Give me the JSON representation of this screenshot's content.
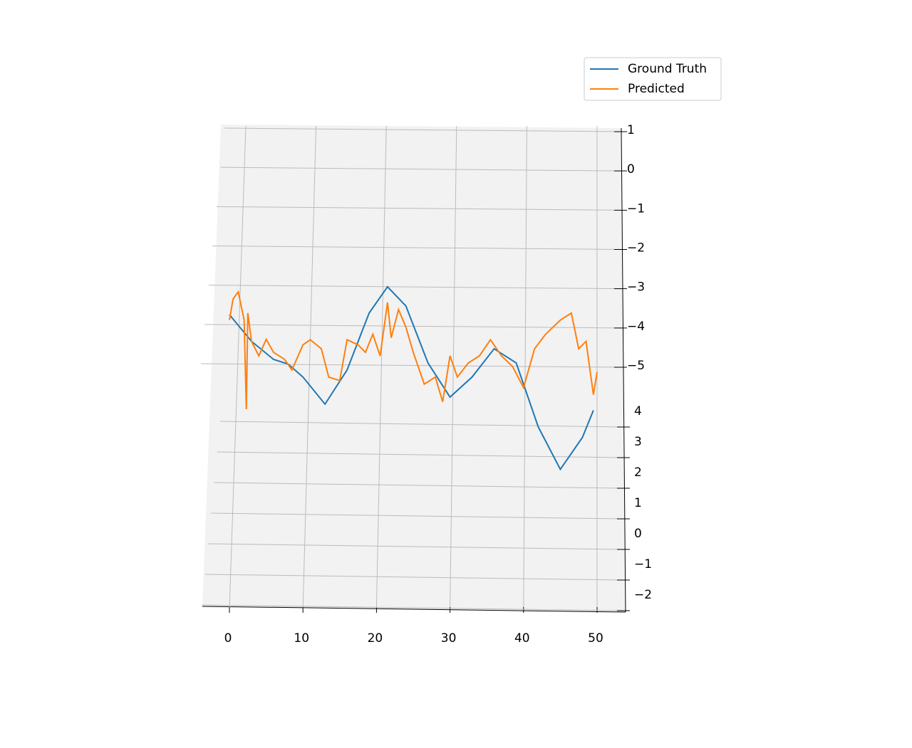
{
  "chart_data": {
    "type": "line3d",
    "xlim": [
      0,
      50
    ],
    "xticks": [
      0,
      10,
      20,
      30,
      40,
      50
    ],
    "ylim": [
      -2,
      4
    ],
    "yticks": [
      {
        "value": -2,
        "label": "−2"
      },
      {
        "value": -1,
        "label": "−1"
      },
      0,
      1,
      2,
      3,
      4
    ],
    "zlim": [
      -5,
      1
    ],
    "zticks": [
      {
        "value": -5,
        "label": "−5"
      },
      {
        "value": -4,
        "label": "−4"
      },
      {
        "value": -3,
        "label": "−3"
      },
      {
        "value": -2,
        "label": "−2"
      },
      {
        "value": -1,
        "label": "−1"
      },
      0,
      1
    ],
    "grid": true,
    "legend": "upper right",
    "series": [
      {
        "name": "Ground Truth",
        "color": "#1f77b4",
        "x": [
          0,
          3,
          6,
          8,
          10,
          13,
          16,
          19,
          21.5,
          24,
          27,
          30,
          33,
          36,
          39,
          42,
          45,
          48,
          49.5
        ],
        "values": [
          -3.66,
          -4.34,
          -4.8,
          -4.92,
          -5.25,
          -5.94,
          -5.07,
          -3.62,
          -2.95,
          -3.44,
          -4.89,
          -5.76,
          -5.25,
          -4.53,
          -4.89,
          -6.52,
          -7.6,
          -6.79,
          -6.1
        ]
      },
      {
        "name": "Predicted",
        "color": "#ff7f0e",
        "x": [
          0,
          0.5,
          1.2,
          2,
          2.3,
          2.5,
          3,
          4,
          5,
          6,
          7.5,
          8.5,
          10,
          11,
          12.5,
          13.5,
          15,
          16,
          17.5,
          18.5,
          19.5,
          20.5,
          21.5,
          22,
          23,
          24,
          25,
          26.5,
          28,
          29,
          30,
          31,
          32.5,
          34,
          35.5,
          37,
          38.5,
          40,
          41.5,
          43,
          45,
          46.5,
          47.5,
          48.5,
          49.5,
          50
        ],
        "values": [
          -3.8,
          -3.26,
          -3.08,
          -3.8,
          -6.07,
          -3.62,
          -4.34,
          -4.71,
          -4.29,
          -4.62,
          -4.8,
          -5.07,
          -4.43,
          -4.3,
          -4.53,
          -5.25,
          -5.34,
          -4.3,
          -4.43,
          -4.62,
          -4.16,
          -4.71,
          -3.35,
          -4.25,
          -3.53,
          -3.98,
          -4.62,
          -5.43,
          -5.25,
          -5.88,
          -4.71,
          -5.25,
          -4.89,
          -4.71,
          -4.3,
          -4.71,
          -4.98,
          -5.52,
          -4.53,
          -4.16,
          -3.8,
          -3.62,
          -4.53,
          -4.34,
          -5.7,
          -5.12
        ]
      }
    ]
  }
}
